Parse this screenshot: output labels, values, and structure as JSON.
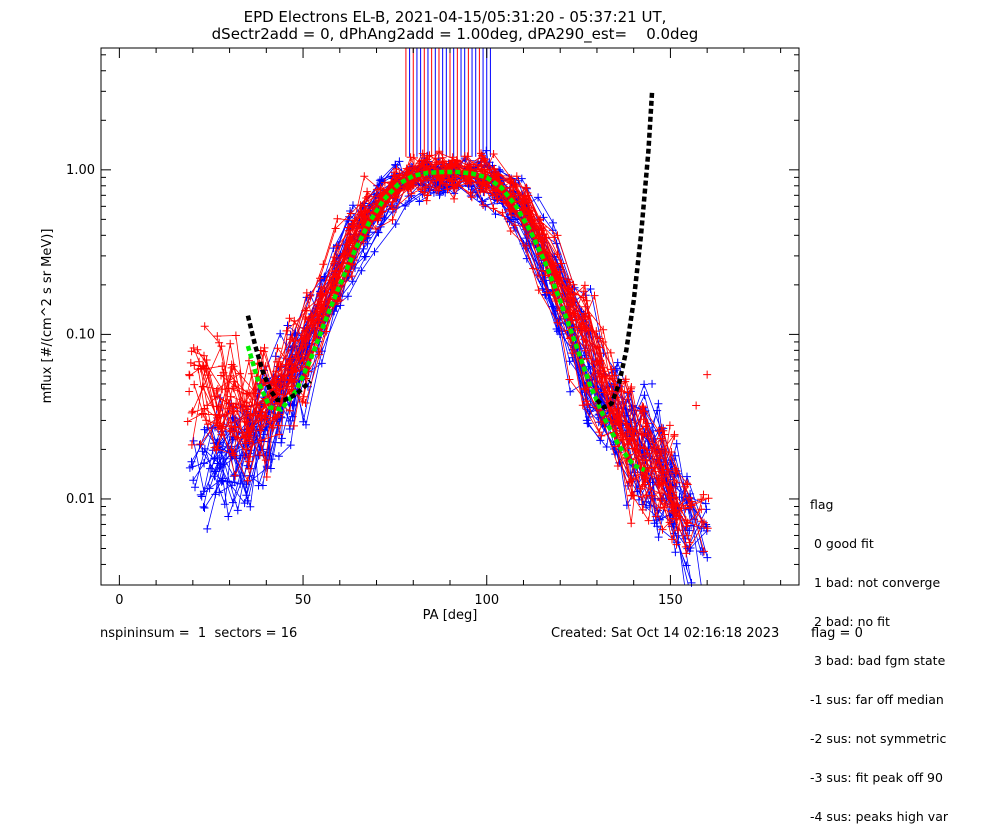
{
  "chart_data": {
    "type": "scatter",
    "title": "EPD Electrons EL-B, 2021-04-15/05:31:20 - 05:37:21 UT,",
    "subtitle": "dSectr2add = 0, dPhAng2add = 1.00deg, dPA290_est=    0.0deg",
    "xlabel": "PA [deg]",
    "ylabel": "mflux [#/(cm^2 s sr MeV)]",
    "xlim": [
      -5,
      185
    ],
    "ylim": [
      0.003,
      5.5
    ],
    "yscale": "log",
    "x_ticks": [
      0,
      50,
      100,
      150
    ],
    "y_ticks": [
      0.01,
      0.1,
      1.0
    ],
    "y_tick_labels": [
      "0.01",
      "0.10",
      "1.00"
    ],
    "grid": false,
    "series": [
      {
        "color": "#ff0000",
        "profile": [
          [
            20,
            0.057
          ],
          [
            35,
            0.03
          ],
          [
            45,
            0.045
          ],
          [
            55,
            0.15
          ],
          [
            65,
            0.45
          ],
          [
            75,
            0.8
          ],
          [
            80,
            0.95
          ],
          [
            90,
            0.96
          ],
          [
            100,
            0.93
          ],
          [
            110,
            0.6
          ],
          [
            120,
            0.2
          ],
          [
            130,
            0.06
          ],
          [
            140,
            0.02
          ],
          [
            150,
            0.012
          ],
          [
            160,
            0.006
          ]
        ]
      },
      {
        "color": "#0000ff",
        "profile": [
          [
            20,
            0.015
          ],
          [
            35,
            0.02
          ],
          [
            45,
            0.04
          ],
          [
            55,
            0.13
          ],
          [
            65,
            0.4
          ],
          [
            75,
            0.78
          ],
          [
            80,
            0.92
          ],
          [
            90,
            0.93
          ],
          [
            100,
            0.92
          ],
          [
            110,
            0.58
          ],
          [
            120,
            0.18
          ],
          [
            130,
            0.05
          ],
          [
            140,
            0.025
          ],
          [
            150,
            0.01
          ],
          [
            160,
            0.005
          ]
        ]
      },
      {
        "name": "",
        "color": "#00ee00",
        "style": "dotted",
        "x": [
          35,
          38,
          41,
          44,
          48,
          52,
          56,
          60,
          64,
          68,
          72,
          76,
          80,
          84,
          88,
          92,
          96,
          100,
          104,
          108,
          112,
          116,
          120,
          124,
          128,
          132,
          136,
          140,
          143
        ],
        "y": [
          0.085,
          0.05,
          0.036,
          0.035,
          0.045,
          0.07,
          0.12,
          0.2,
          0.32,
          0.48,
          0.66,
          0.82,
          0.92,
          0.96,
          0.97,
          0.97,
          0.95,
          0.9,
          0.78,
          0.6,
          0.42,
          0.27,
          0.16,
          0.09,
          0.05,
          0.031,
          0.021,
          0.016,
          0.015
        ]
      },
      {
        "name": "",
        "color": "#000000",
        "style": "dotted",
        "x": [
          35,
          37,
          39,
          41,
          43,
          45,
          48,
          52
        ],
        "y": [
          0.13,
          0.085,
          0.06,
          0.046,
          0.04,
          0.04,
          0.043,
          0.052
        ]
      },
      {
        "name": "",
        "color": "#000000",
        "style": "dotted",
        "x": [
          130,
          132,
          134,
          136,
          138,
          140,
          142,
          144,
          145
        ],
        "y": [
          0.04,
          0.036,
          0.038,
          0.05,
          0.08,
          0.16,
          0.4,
          1.3,
          3.0
        ]
      }
    ],
    "spikes": {
      "x": [
        78,
        79,
        80,
        81,
        82,
        83,
        84,
        85,
        86,
        87,
        88,
        89,
        90,
        91,
        92,
        93,
        94,
        95,
        96,
        97,
        98,
        99,
        100,
        101
      ],
      "colors": [
        "#ff0000",
        "#0000ff",
        "#ff0000",
        "#0000ff",
        "#0000ff",
        "#ff0000",
        "#0000ff",
        "#ff0000",
        "#0000ff",
        "#ff0000",
        "#0000ff",
        "#0000ff",
        "#ff0000",
        "#0000ff",
        "#ff0000",
        "#0000ff",
        "#0000ff",
        "#ff0000",
        "#0000ff",
        "#0000ff",
        "#ff0000",
        "#0000ff",
        "#0000ff",
        "#0000ff"
      ],
      "y_bottom": 1.2,
      "y_top": 5.5
    }
  },
  "legend": {
    "title": "flag",
    "items": [
      " 0 good fit",
      " 1 bad: not converge",
      " 2 bad: no fit",
      " 3 bad: bad fgm state",
      "-1 sus: far off median",
      "-2 sus: not symmetric",
      "-3 sus: fit peak off 90",
      "-4 sus: peaks high var"
    ]
  },
  "footer": {
    "left": "nspininsum =  1  sectors = 16",
    "created": "Created: Sat Oct 14 02:16:18 2023",
    "flag": "flag = 0"
  }
}
